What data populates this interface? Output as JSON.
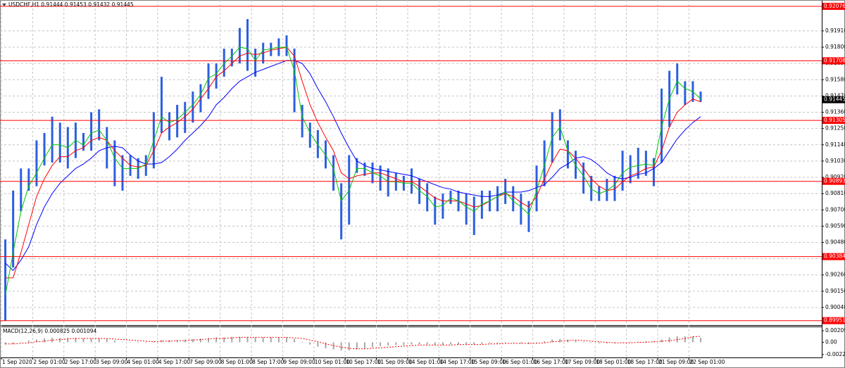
{
  "chart_data": [
    {
      "type": "ohlc",
      "title": "USDCHF,H1  0.91444 0.91453 0.91432 0.91445",
      "categories": [
        "1 Sep 2020",
        null,
        null,
        null,
        "2 Sep 01:00",
        null,
        null,
        null,
        "2 Sep 17:00",
        null,
        null,
        null,
        "3 Sep 09:00",
        null,
        null,
        null,
        "4 Sep 01:00",
        null,
        null,
        null,
        "4 Sep 17:00",
        null,
        null,
        null,
        "7 Sep 09:00",
        null,
        null,
        null,
        "8 Sep 01:00",
        null,
        null,
        null,
        "8 Sep 17:00",
        null,
        null,
        null,
        "9 Sep 09:00",
        null,
        null,
        null,
        "10 Sep 01:00",
        null,
        null,
        null,
        "10 Sep 17:00",
        null,
        null,
        null,
        "11 Sep 09:00",
        null,
        null,
        null,
        "14 Sep 01:00",
        null,
        null,
        null,
        "14 Sep 17:00",
        null,
        null,
        null,
        "15 Sep 09:00",
        null,
        null,
        null,
        "16 Sep 01:00",
        null,
        null,
        null,
        "16 Sep 17:00",
        null,
        null,
        null,
        "17 Sep 09:00",
        null,
        null,
        null,
        "18 Sep 01:00",
        null,
        null,
        null,
        "18 Sep 17:00",
        null,
        null,
        null,
        "21 Sep 09:00",
        null,
        null,
        null,
        "22 Sep 01:00",
        null
      ],
      "high": [
        0.905,
        0.9083,
        0.9098,
        0.9098,
        0.9117,
        0.9122,
        0.9133,
        0.9129,
        0.9126,
        0.9129,
        0.9122,
        0.9136,
        0.9138,
        0.9126,
        0.9117,
        0.9107,
        0.9107,
        0.9105,
        0.9107,
        0.9136,
        0.916,
        0.9136,
        0.9141,
        0.9143,
        0.915,
        0.9155,
        0.9169,
        0.9169,
        0.9179,
        0.9179,
        0.9193,
        0.9199,
        0.9179,
        0.9183,
        0.9183,
        0.9186,
        0.9188,
        0.9179,
        0.9141,
        0.9129,
        0.9124,
        0.9117,
        0.9107,
        0.9088,
        0.9107,
        0.9105,
        0.9102,
        0.9102,
        0.91,
        0.9098,
        0.9095,
        0.9093,
        0.9098,
        0.9091,
        0.9088,
        0.9079,
        0.9081,
        0.9083,
        0.9083,
        0.9081,
        0.9079,
        0.9083,
        0.9083,
        0.9086,
        0.9091,
        0.9086,
        0.9081,
        0.9076,
        0.91,
        0.9117,
        0.9136,
        0.9138,
        0.9117,
        0.911,
        0.9102,
        0.9093,
        0.9086,
        0.9091,
        0.9093,
        0.911,
        0.9107,
        0.9112,
        0.911,
        0.9105,
        0.9152,
        0.9164,
        0.9169,
        0.9157,
        0.9157,
        0.915
      ],
      "low": [
        0.8995,
        0.9031,
        0.9069,
        0.9083,
        0.9086,
        0.91,
        0.9102,
        0.9102,
        0.9098,
        0.9105,
        0.911,
        0.911,
        0.9117,
        0.9098,
        0.9086,
        0.9083,
        0.9093,
        0.9091,
        0.9093,
        0.9098,
        0.9122,
        0.9117,
        0.9119,
        0.9122,
        0.9129,
        0.9136,
        0.9145,
        0.9152,
        0.916,
        0.9167,
        0.9169,
        0.9164,
        0.916,
        0.9169,
        0.9174,
        0.9174,
        0.9174,
        0.9136,
        0.9119,
        0.9112,
        0.9105,
        0.9098,
        0.9083,
        0.905,
        0.906,
        0.9095,
        0.9093,
        0.9088,
        0.9083,
        0.9079,
        0.9083,
        0.9083,
        0.9081,
        0.9074,
        0.9069,
        0.906,
        0.9064,
        0.9074,
        0.9069,
        0.906,
        0.9053,
        0.9064,
        0.9069,
        0.9069,
        0.9074,
        0.9069,
        0.906,
        0.9055,
        0.9069,
        0.9086,
        0.9102,
        0.9117,
        0.9098,
        0.9091,
        0.9081,
        0.9076,
        0.9076,
        0.9076,
        0.9076,
        0.9083,
        0.9088,
        0.9091,
        0.9093,
        0.9086,
        0.9102,
        0.9126,
        0.9148,
        0.9141,
        0.9143,
        0.9143
      ],
      "color": "#2b5fe0",
      "series": [
        {
          "color": "#0000ff",
          "values": [
            0.9034,
            0.9029,
            0.9036,
            0.9045,
            0.906,
            0.9072,
            0.9081,
            0.9088,
            0.9093,
            0.9098,
            0.9101,
            0.9105,
            0.911,
            0.9112,
            0.9113,
            0.9112,
            0.9107,
            0.9103,
            0.9101,
            0.9101,
            0.9102,
            0.9106,
            0.9111,
            0.9117,
            0.9122,
            0.9127,
            0.9133,
            0.9141,
            0.9146,
            0.9152,
            0.9157,
            0.916,
            0.9163,
            0.9165,
            0.9167,
            0.9169,
            0.9171,
            0.9171,
            0.9169,
            0.9162,
            0.9152,
            0.9143,
            0.9133,
            0.9122,
            0.9112,
            0.9103,
            0.91,
            0.9098,
            0.9097,
            0.9096,
            0.9095,
            0.9094,
            0.9093,
            0.9091,
            0.9089,
            0.9087,
            0.9085,
            0.9084,
            0.9082,
            0.9081,
            0.908,
            0.9079,
            0.9079,
            0.908,
            0.9082,
            0.9082,
            0.9082,
            0.9083,
            0.9085,
            0.9087,
            0.9092,
            0.9098,
            0.9101,
            0.9105,
            0.9106,
            0.9104,
            0.91,
            0.9095,
            0.9092,
            0.9091,
            0.9092,
            0.9094,
            0.9095,
            0.9098,
            0.9102,
            0.911,
            0.9118,
            0.9124,
            0.9129,
            0.9133
          ]
        },
        {
          "color": "#ff0000",
          "values": [
            0.9024,
            0.9024,
            0.9041,
            0.906,
            0.9079,
            0.9091,
            0.91,
            0.9106,
            0.9106,
            0.911,
            0.9112,
            0.9117,
            0.9119,
            0.9117,
            0.911,
            0.9105,
            0.91,
            0.9099,
            0.91,
            0.911,
            0.9122,
            0.9126,
            0.9129,
            0.9133,
            0.9138,
            0.9145,
            0.9152,
            0.916,
            0.9164,
            0.9169,
            0.9174,
            0.9176,
            0.9175,
            0.9176,
            0.9178,
            0.9179,
            0.918,
            0.9174,
            0.9157,
            0.9141,
            0.9129,
            0.9119,
            0.911,
            0.9095,
            0.9091,
            0.9093,
            0.9094,
            0.9095,
            0.9095,
            0.9093,
            0.9091,
            0.9089,
            0.9089,
            0.9086,
            0.9082,
            0.9078,
            0.9076,
            0.9076,
            0.9076,
            0.9074,
            0.9072,
            0.9073,
            0.9076,
            0.9079,
            0.9081,
            0.9079,
            0.9075,
            0.9072,
            0.9079,
            0.9091,
            0.9102,
            0.9111,
            0.911,
            0.9105,
            0.9098,
            0.9091,
            0.9086,
            0.9083,
            0.9084,
            0.9089,
            0.9093,
            0.9095,
            0.9098,
            0.9099,
            0.911,
            0.9126,
            0.9136,
            0.9141,
            0.9145,
            0.9143
          ]
        },
        {
          "color": "#00c800",
          "values": [
            0.9012,
            0.9041,
            0.9069,
            0.9086,
            0.9095,
            0.9105,
            0.9114,
            0.9114,
            0.9112,
            0.9117,
            0.9114,
            0.9122,
            0.9124,
            0.9117,
            0.9105,
            0.9098,
            0.9098,
            0.9098,
            0.9101,
            0.9117,
            0.9133,
            0.9129,
            0.9131,
            0.9136,
            0.9141,
            0.9148,
            0.9159,
            0.9162,
            0.9169,
            0.9174,
            0.918,
            0.9179,
            0.9171,
            0.9178,
            0.9179,
            0.918,
            0.918,
            0.9164,
            0.9133,
            0.9122,
            0.9114,
            0.9107,
            0.9098,
            0.9076,
            0.9083,
            0.9098,
            0.9098,
            0.9095,
            0.9093,
            0.9089,
            0.9089,
            0.9088,
            0.9088,
            0.9083,
            0.9079,
            0.9072,
            0.9073,
            0.9078,
            0.9076,
            0.9072,
            0.9069,
            0.9074,
            0.9076,
            0.9079,
            0.9082,
            0.9076,
            0.9072,
            0.9067,
            0.9083,
            0.91,
            0.9119,
            0.9126,
            0.911,
            0.91,
            0.9093,
            0.9084,
            0.9081,
            0.9083,
            0.9087,
            0.9095,
            0.9099,
            0.91,
            0.9101,
            0.91,
            0.9126,
            0.9145,
            0.9157,
            0.9152,
            0.915,
            0.9145
          ]
        }
      ],
      "ylim": [
        0.89921,
        0.92119
      ],
      "yticks": [
        {
          "value": 0.9191,
          "label": "0.91910"
        },
        {
          "value": 0.918,
          "label": "0.91800"
        },
        {
          "value": 0.9169,
          "label": "0.91690"
        },
        {
          "value": 0.9158,
          "label": "0.91580"
        },
        {
          "value": 0.9147,
          "label": "0.91470"
        },
        {
          "value": 0.9136,
          "label": "0.91360"
        },
        {
          "value": 0.9125,
          "label": "0.91250"
        },
        {
          "value": 0.9114,
          "label": "0.91140"
        },
        {
          "value": 0.9103,
          "label": "0.91030"
        },
        {
          "value": 0.9092,
          "label": "0.90920"
        },
        {
          "value": 0.9081,
          "label": "0.90810"
        },
        {
          "value": 0.907,
          "label": "0.90700"
        },
        {
          "value": 0.9059,
          "label": "0.90590"
        },
        {
          "value": 0.9048,
          "label": "0.90480"
        },
        {
          "value": 0.9037,
          "label": "0.90370"
        },
        {
          "value": 0.9026,
          "label": "0.90260"
        },
        {
          "value": 0.9015,
          "label": "0.90150"
        },
        {
          "value": 0.9004,
          "label": "0.90040"
        }
      ],
      "grid": true,
      "levels": {
        "color": "#ff0000",
        "values": [
          0.92076,
          0.91708,
          0.91305,
          0.90893,
          0.90384,
          0.89951
        ]
      },
      "current_price": 0.91445
    },
    {
      "type": "macd",
      "title": "MACD(12,26,9) 0.000825 0.001094",
      "values": [
        -0.0004,
        -0.0003,
        0,
        0.0003,
        0.0005,
        0.0007,
        0.0008,
        0.0008,
        0.0008,
        0.0008,
        0.0007,
        0.0007,
        0.0007,
        0.0006,
        0.0003,
        0.0001,
        0,
        -0.0001,
        -0.0001,
        0.0001,
        0.0004,
        0.0004,
        0.0004,
        0.0005,
        0.0006,
        0.0007,
        0.0008,
        0.0009,
        0.0009,
        0.001,
        0.001,
        0.001,
        0.0009,
        0.0009,
        0.0009,
        0.0009,
        0.0009,
        0.0006,
        0.0001,
        -0.0004,
        -0.0008,
        -0.0011,
        -0.0013,
        -0.0015,
        -0.0015,
        -0.0013,
        -0.0011,
        -0.0009,
        -0.0007,
        -0.0006,
        -0.0005,
        -0.0005,
        -0.0004,
        -0.0004,
        -0.0004,
        -0.0005,
        -0.0005,
        -0.0004,
        -0.0004,
        -0.0004,
        -0.0004,
        -0.0003,
        -0.0002,
        -0.0002,
        -0.0001,
        -0.0001,
        -0.0002,
        -0.0003,
        -0.0001,
        0.0002,
        0.0005,
        0.0006,
        0.0005,
        0.0003,
        0.0001,
        -0.0001,
        -0.0002,
        -0.0002,
        -0.0002,
        0,
        0.0001,
        0.0001,
        0.0002,
        0.0002,
        0.0005,
        0.0009,
        0.0011,
        0.0011,
        0.0011,
        0.0008
      ],
      "color": "#a8a8a8",
      "signal": [
        -0.0003,
        -0.0003,
        -0.0002,
        -0.0001,
        0.0001,
        0.0002,
        0.0004,
        0.0005,
        0.0006,
        0.0007,
        0.0007,
        0.0007,
        0.0007,
        0.0007,
        0.0006,
        0.0005,
        0.0004,
        0.0003,
        0.0002,
        0.0001,
        0.0002,
        0.0002,
        0.0003,
        0.0003,
        0.0004,
        0.0005,
        0.0006,
        0.0007,
        0.0007,
        0.0008,
        0.0009,
        0.0009,
        0.0009,
        0.0009,
        0.0009,
        0.0009,
        0.0009,
        0.0008,
        0.0007,
        0.0004,
        0.0001,
        -0.0003,
        -0.0006,
        -0.0009,
        -0.0011,
        -0.0012,
        -0.0012,
        -0.0011,
        -0.001,
        -0.0009,
        -0.0008,
        -0.0007,
        -0.0006,
        -0.0005,
        -0.0005,
        -0.0005,
        -0.0005,
        -0.0005,
        -0.0004,
        -0.0004,
        -0.0004,
        -0.0004,
        -0.0003,
        -0.0003,
        -0.0002,
        -0.0002,
        -0.0002,
        -0.0002,
        -0.0002,
        -0.0001,
        0.0001,
        0.0002,
        0.0003,
        0.0004,
        0.0003,
        0.0002,
        0.0001,
        0,
        -0.0001,
        -0.0001,
        -0.0001,
        0,
        0,
        0.0001,
        0.0002,
        0.0003,
        0.0005,
        0.0007,
        0.001,
        0.0011
      ],
      "signal_color": "#ff0000",
      "ylim": [
        -0.00276,
        0.00275
      ],
      "yticks": [
        0.002097,
        {
          "value": 0,
          "label": "0.00"
        },
        -0.002233
      ]
    }
  ]
}
